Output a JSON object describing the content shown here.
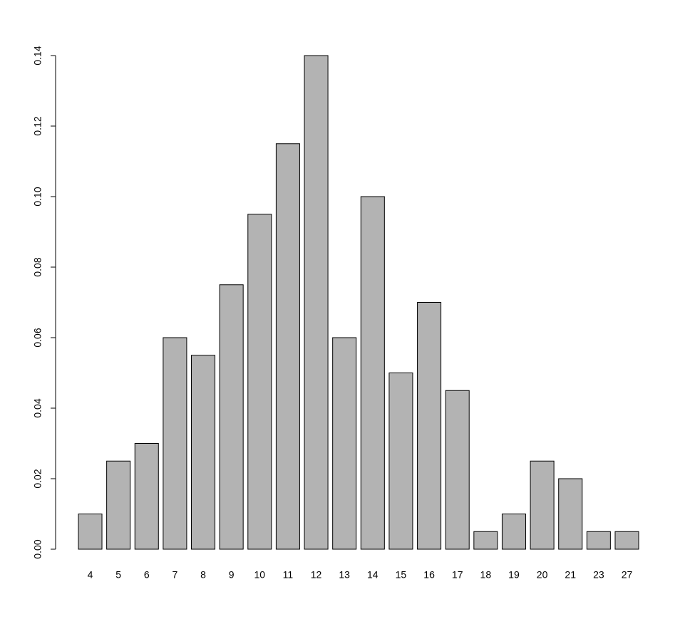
{
  "chart_data": {
    "type": "bar",
    "categories": [
      "4",
      "5",
      "6",
      "7",
      "8",
      "9",
      "10",
      "11",
      "12",
      "13",
      "14",
      "15",
      "16",
      "17",
      "18",
      "19",
      "20",
      "21",
      "23",
      "27"
    ],
    "values": [
      0.01,
      0.025,
      0.03,
      0.06,
      0.055,
      0.075,
      0.095,
      0.115,
      0.14,
      0.06,
      0.1,
      0.05,
      0.07,
      0.045,
      0.005,
      0.01,
      0.025,
      0.02,
      0.005,
      0.005
    ],
    "color": "#b3b3b3",
    "ylim": [
      0,
      0.14
    ],
    "yticks": [
      {
        "value": 0,
        "label": "0.00"
      },
      {
        "value": 0.02,
        "label": "0.02"
      },
      {
        "value": 0.04,
        "label": "0.04"
      },
      {
        "value": 0.06,
        "label": "0.06"
      },
      {
        "value": 0.08,
        "label": "0.08"
      },
      {
        "value": 0.1,
        "label": "0.10"
      },
      {
        "value": 0.12,
        "label": "0.12"
      },
      {
        "value": 0.14,
        "label": "0.14"
      }
    ],
    "grid": false
  }
}
